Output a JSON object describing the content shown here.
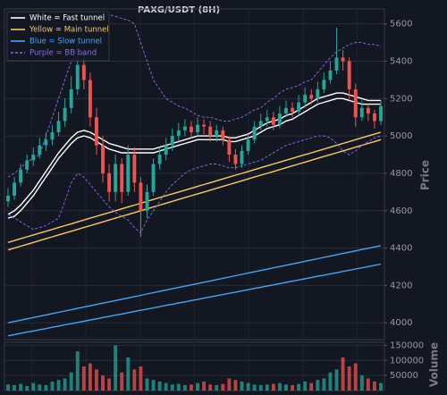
{
  "chart_data": {
    "type": "candlestick",
    "title": "PAXG/USDT (8H)",
    "y_label": "Price",
    "ylim": [
      3910,
      5680
    ],
    "yticks": [
      4000,
      4200,
      4400,
      4600,
      4800,
      5000,
      5200,
      5400,
      5600
    ],
    "grid": true,
    "legend": "upper left",
    "up_color": "#26a69a",
    "down_color": "#ef5350",
    "candles": {
      "open": [
        4650,
        4680,
        4750,
        4820,
        4870,
        4900,
        4950,
        4980,
        5020,
        5080,
        5150,
        5250,
        5380,
        5300,
        5100,
        4950,
        4800,
        4700,
        4850,
        4700,
        4900,
        4750,
        4600,
        4700,
        4850,
        4900,
        4950,
        5000,
        5030,
        5050,
        5020,
        5060,
        5050,
        5000,
        5030,
        4980,
        4900,
        4850,
        4920,
        4980,
        5050,
        5080,
        5100,
        5060,
        5120,
        5150,
        5130,
        5180,
        5220,
        5200,
        5250,
        5300,
        5350,
        5420,
        5400,
        5250,
        5100,
        5150,
        5120,
        5080
      ],
      "high": [
        4720,
        4780,
        4850,
        4900,
        4940,
        4990,
        5020,
        5060,
        5130,
        5200,
        5320,
        5500,
        5450,
        5340,
        5150,
        5000,
        4850,
        4900,
        4880,
        4950,
        4940,
        4780,
        4740,
        4880,
        4940,
        4990,
        5040,
        5070,
        5090,
        5080,
        5100,
        5090,
        5080,
        5060,
        5050,
        5000,
        4930,
        4950,
        5010,
        5080,
        5120,
        5140,
        5130,
        5160,
        5190,
        5180,
        5220,
        5260,
        5250,
        5290,
        5340,
        5400,
        5580,
        5460,
        5420,
        5280,
        5190,
        5170,
        5140,
        5190
      ],
      "low": [
        4620,
        4660,
        4730,
        4800,
        4840,
        4880,
        4920,
        4950,
        5000,
        5050,
        5120,
        5220,
        5250,
        5050,
        4900,
        4750,
        4650,
        4650,
        4640,
        4680,
        4700,
        4460,
        4560,
        4680,
        4820,
        4870,
        4920,
        4970,
        5000,
        4990,
        5000,
        5010,
        4970,
        4970,
        4950,
        4860,
        4820,
        4830,
        4900,
        4960,
        5030,
        5050,
        5030,
        5040,
        5100,
        5100,
        5110,
        5150,
        5170,
        5180,
        5230,
        5280,
        5330,
        5350,
        5200,
        5050,
        5080,
        5080,
        5040,
        5060
      ],
      "close": [
        4680,
        4750,
        4820,
        4870,
        4900,
        4950,
        4980,
        5020,
        5080,
        5150,
        5250,
        5380,
        5300,
        5100,
        4950,
        4800,
        4700,
        4850,
        4700,
        4900,
        4750,
        4600,
        4700,
        4850,
        4900,
        4950,
        5000,
        5030,
        5050,
        5020,
        5060,
        5050,
        5000,
        5030,
        4980,
        4900,
        4850,
        4920,
        4980,
        5050,
        5080,
        5100,
        5060,
        5120,
        5150,
        5130,
        5180,
        5220,
        5200,
        5250,
        5300,
        5350,
        5420,
        5400,
        5250,
        5100,
        5150,
        5120,
        5080,
        5160
      ]
    },
    "bands": [
      {
        "name": "White = Fast tunnel",
        "color": "#ffffff",
        "dashed": false,
        "upper": [
          4580,
          4600,
          4630,
          4670,
          4710,
          4760,
          4810,
          4860,
          4910,
          4950,
          4990,
          5020,
          5030,
          5020,
          5000,
          4980,
          4960,
          4950,
          4940,
          4930,
          4930,
          4930,
          4930,
          4930,
          4940,
          4950,
          4960,
          4970,
          4980,
          4990,
          5000,
          5000,
          5000,
          5000,
          5000,
          4990,
          4990,
          5000,
          5010,
          5030,
          5050,
          5070,
          5080,
          5090,
          5110,
          5120,
          5140,
          5160,
          5180,
          5200,
          5210,
          5220,
          5230,
          5230,
          5220,
          5210,
          5200,
          5190,
          5190,
          5190
        ],
        "lower": [
          4560,
          4570,
          4600,
          4640,
          4680,
          4730,
          4780,
          4830,
          4880,
          4920,
          4960,
          4990,
          5000,
          4990,
          4970,
          4950,
          4930,
          4920,
          4910,
          4910,
          4910,
          4910,
          4910,
          4910,
          4920,
          4930,
          4940,
          4950,
          4960,
          4970,
          4980,
          4980,
          4980,
          4980,
          4980,
          4970,
          4970,
          4980,
          4990,
          5000,
          5020,
          5040,
          5050,
          5060,
          5080,
          5090,
          5110,
          5130,
          5150,
          5170,
          5180,
          5190,
          5200,
          5200,
          5190,
          5180,
          5170,
          5170,
          5170,
          5170
        ]
      },
      {
        "name": "Yellow = Main tunnel",
        "color": "#f5c96a",
        "dashed": false,
        "upper": [
          4430,
          4440,
          4450,
          4460,
          4470,
          4480,
          4490,
          4500,
          4510,
          4520,
          4530,
          4540,
          4550,
          4560,
          4570,
          4580,
          4590,
          4600,
          4610,
          4620,
          4630,
          4640,
          4650,
          4660,
          4670,
          4680,
          4690,
          4700,
          4710,
          4720,
          4730,
          4740,
          4750,
          4760,
          4770,
          4780,
          4790,
          4800,
          4810,
          4820,
          4830,
          4840,
          4850,
          4860,
          4870,
          4880,
          4890,
          4900,
          4910,
          4920,
          4930,
          4940,
          4950,
          4960,
          4970,
          4980,
          4990,
          5000,
          5010,
          5020
        ],
        "lower": [
          4390,
          4400,
          4410,
          4420,
          4430,
          4440,
          4450,
          4460,
          4470,
          4480,
          4490,
          4500,
          4510,
          4520,
          4530,
          4540,
          4550,
          4560,
          4570,
          4580,
          4590,
          4600,
          4610,
          4620,
          4630,
          4640,
          4650,
          4660,
          4670,
          4680,
          4690,
          4700,
          4710,
          4720,
          4730,
          4740,
          4750,
          4760,
          4770,
          4780,
          4790,
          4800,
          4810,
          4820,
          4830,
          4840,
          4850,
          4860,
          4870,
          4880,
          4890,
          4900,
          4910,
          4920,
          4930,
          4940,
          4950,
          4960,
          4970,
          4980
        ]
      },
      {
        "name": "Blue = Slow tunnel",
        "color": "#4aa3f0",
        "dashed": false,
        "upper": [
          4000,
          4007,
          4014,
          4021,
          4028,
          4035,
          4042,
          4049,
          4056,
          4063,
          4070,
          4077,
          4084,
          4091,
          4098,
          4105,
          4112,
          4119,
          4126,
          4133,
          4140,
          4147,
          4154,
          4161,
          4168,
          4175,
          4182,
          4189,
          4196,
          4203,
          4210,
          4217,
          4224,
          4231,
          4238,
          4245,
          4252,
          4259,
          4266,
          4273,
          4280,
          4287,
          4294,
          4301,
          4308,
          4315,
          4322,
          4329,
          4336,
          4343,
          4350,
          4357,
          4364,
          4371,
          4378,
          4385,
          4392,
          4399,
          4406,
          4413
        ],
        "lower": [
          3930,
          3937,
          3943,
          3950,
          3956,
          3963,
          3969,
          3976,
          3982,
          3989,
          3995,
          4002,
          4008,
          4015,
          4021,
          4028,
          4034,
          4041,
          4047,
          4054,
          4060,
          4067,
          4073,
          4080,
          4086,
          4093,
          4099,
          4106,
          4112,
          4119,
          4125,
          4132,
          4138,
          4145,
          4151,
          4158,
          4164,
          4171,
          4177,
          4184,
          4190,
          4197,
          4203,
          4210,
          4216,
          4223,
          4229,
          4236,
          4242,
          4249,
          4255,
          4262,
          4268,
          4275,
          4281,
          4288,
          4294,
          4301,
          4307,
          4314
        ]
      },
      {
        "name": "Purple = BB band",
        "color": "#8a6cf0",
        "dashed": true,
        "upper": [
          4780,
          4800,
          4830,
          4860,
          4880,
          4900,
          5000,
          5100,
          5200,
          5300,
          5400,
          5480,
          5550,
          5620,
          5650,
          5650,
          5650,
          5640,
          5630,
          5620,
          5600,
          5500,
          5400,
          5300,
          5250,
          5200,
          5180,
          5160,
          5150,
          5130,
          5110,
          5100,
          5100,
          5090,
          5080,
          5080,
          5090,
          5100,
          5120,
          5140,
          5150,
          5180,
          5200,
          5230,
          5250,
          5260,
          5270,
          5290,
          5300,
          5340,
          5380,
          5420,
          5450,
          5470,
          5490,
          5500,
          5500,
          5490,
          5490,
          5480
        ],
        "lower": [
          4580,
          4560,
          4540,
          4520,
          4500,
          4510,
          4520,
          4540,
          4560,
          4650,
          4750,
          4800,
          4780,
          4740,
          4700,
          4660,
          4620,
          4590,
          4570,
          4550,
          4510,
          4480,
          4550,
          4600,
          4650,
          4700,
          4740,
          4770,
          4800,
          4820,
          4830,
          4840,
          4850,
          4850,
          4840,
          4830,
          4830,
          4840,
          4850,
          4860,
          4870,
          4890,
          4910,
          4930,
          4950,
          4960,
          4970,
          4980,
          4990,
          5000,
          5000,
          4990,
          4960,
          4920,
          4900,
          4920,
          4950,
          4970,
          4990,
          5000
        ]
      }
    ],
    "volume": {
      "y_label": "Volume",
      "ylim": [
        0,
        160000
      ],
      "yticks": [
        50000,
        100000,
        150000
      ],
      "values": [
        20000,
        18000,
        22000,
        15000,
        25000,
        20000,
        18000,
        30000,
        35000,
        40000,
        60000,
        130000,
        80000,
        90000,
        70000,
        50000,
        40000,
        150000,
        60000,
        110000,
        70000,
        80000,
        40000,
        35000,
        30000,
        25000,
        20000,
        22000,
        18000,
        20000,
        25000,
        30000,
        20000,
        18000,
        22000,
        40000,
        35000,
        30000,
        25000,
        20000,
        18000,
        20000,
        22000,
        25000,
        20000,
        18000,
        22000,
        30000,
        25000,
        35000,
        40000,
        60000,
        70000,
        110000,
        80000,
        90000,
        50000,
        40000,
        30000,
        25000
      ]
    }
  }
}
